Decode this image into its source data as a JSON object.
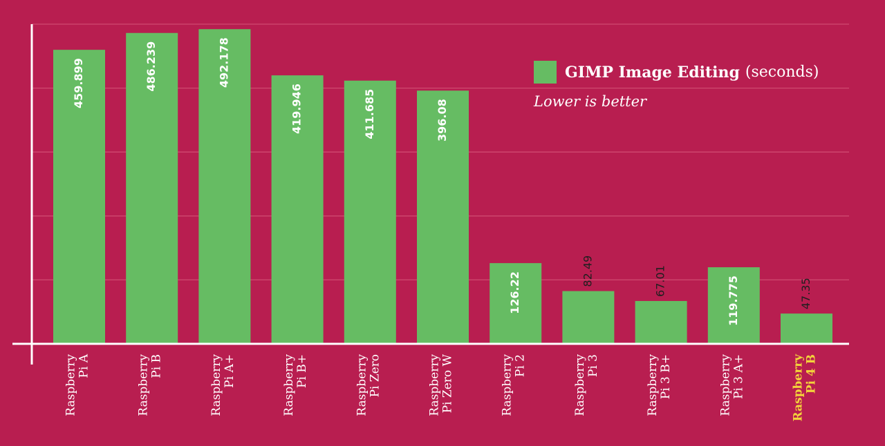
{
  "legend": {
    "series_name": "GIMP Image Editing",
    "unit": "(seconds)",
    "note": "Lower is better"
  },
  "colors": {
    "background": "#b81e50",
    "bar": "#66bc63",
    "axis": "#ffffff",
    "gridline": "#cf4a70",
    "label_inside": "#ffffff",
    "label_outside": "#1f1f1f",
    "category": "#ffffff",
    "highlight_category": "#f3d23b"
  },
  "chart_data": {
    "type": "bar",
    "categories": [
      "Raspberry Pi A",
      "Raspberry Pi B",
      "Raspberry Pi A+",
      "Raspberry Pi B+",
      "Raspberry Pi Zero",
      "Raspberry Pi Zero W",
      "Raspberry Pi 2",
      "Raspberry Pi 3",
      "Raspberry Pi 3 B+",
      "Raspberry Pi 3 A+",
      "Raspberry Pi 4 B"
    ],
    "category_lines": [
      [
        "Raspberry",
        "Pi A"
      ],
      [
        "Raspberry",
        "Pi B"
      ],
      [
        "Raspberry",
        "Pi A+"
      ],
      [
        "Raspberry",
        "Pi B+"
      ],
      [
        "Raspberry",
        "Pi Zero"
      ],
      [
        "Raspberry",
        "Pi Zero W"
      ],
      [
        "Raspberry",
        "Pi 2"
      ],
      [
        "Raspberry",
        "Pi 3"
      ],
      [
        "Raspberry",
        "Pi 3 B+"
      ],
      [
        "Raspberry",
        "Pi 3 A+"
      ],
      [
        "Raspberry",
        "Pi 4 B"
      ]
    ],
    "series": [
      {
        "name": "GIMP Image Editing",
        "values": [
          459.899,
          486.239,
          492.178,
          419.946,
          411.685,
          396.08,
          126.22,
          82.49,
          67.01,
          119.775,
          47.35
        ],
        "labels": [
          "459.899",
          "486.239",
          "492.178",
          "419.946",
          "411.685",
          "396.08",
          "126.22",
          "82.49",
          "67.01",
          "119.775",
          "47.35"
        ]
      }
    ],
    "highlight_index": 10,
    "ylim": [
      0,
      500
    ],
    "grid": true,
    "legend_position": "top-right",
    "title": "",
    "xlabel": "",
    "ylabel": ""
  }
}
